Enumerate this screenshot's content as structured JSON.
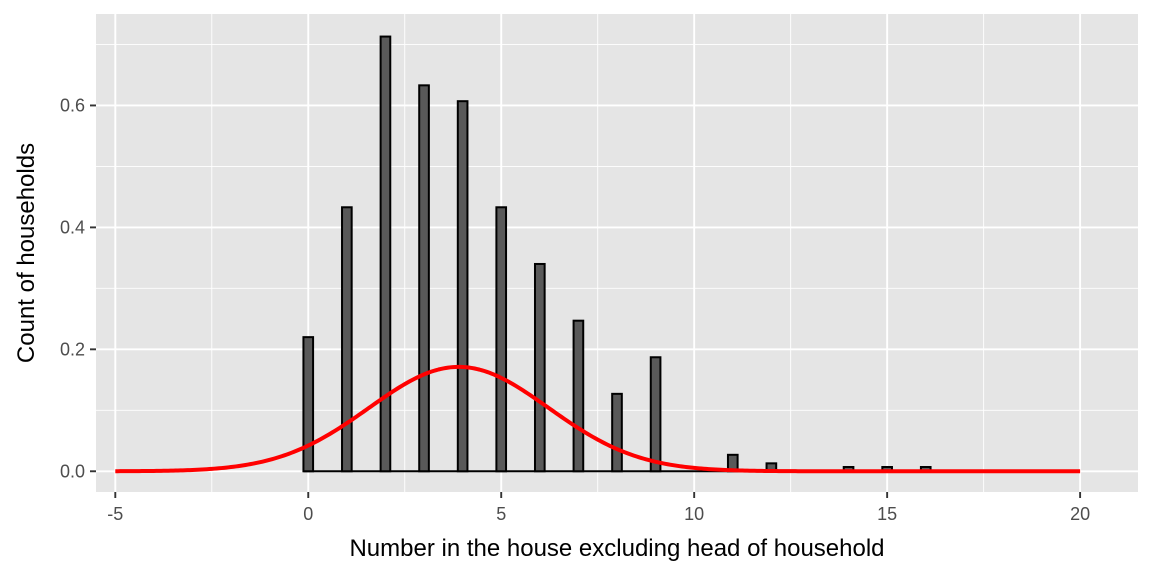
{
  "chart_data": {
    "type": "bar",
    "title": "",
    "xlabel": "Number in the house excluding head of household",
    "ylabel": "Count of households",
    "xlim": [
      -5.5,
      21.5
    ],
    "ylim": [
      -0.034,
      0.75
    ],
    "x_ticks": [
      -5,
      0,
      5,
      10,
      15,
      20
    ],
    "x_tick_labels": [
      "-5",
      "0",
      "5",
      "10",
      "15",
      "20"
    ],
    "y_ticks": [
      0.0,
      0.2,
      0.4,
      0.6
    ],
    "y_tick_labels": [
      "0.0",
      "0.2",
      "0.4",
      "0.6"
    ],
    "grid": true,
    "panel_background": "#e5e5e5",
    "grid_color": "#ffffff",
    "bar_fill": "#595959",
    "bar_outline": "#000000",
    "bar_width": 0.25,
    "bars": {
      "x": [
        0,
        1,
        2,
        3,
        4,
        5,
        6,
        7,
        8,
        9,
        10,
        11,
        12,
        13,
        14,
        15,
        16
      ],
      "values": [
        0.22,
        0.433,
        0.713,
        0.633,
        0.607,
        0.433,
        0.34,
        0.247,
        0.127,
        0.187,
        0.0,
        0.027,
        0.013,
        0.0,
        0.007,
        0.007,
        0.007
      ]
    },
    "density_curve": {
      "type": "normal",
      "mean": 3.9,
      "sd": 2.33,
      "x_range": [
        -5,
        20
      ],
      "color": "#ff0000"
    }
  }
}
